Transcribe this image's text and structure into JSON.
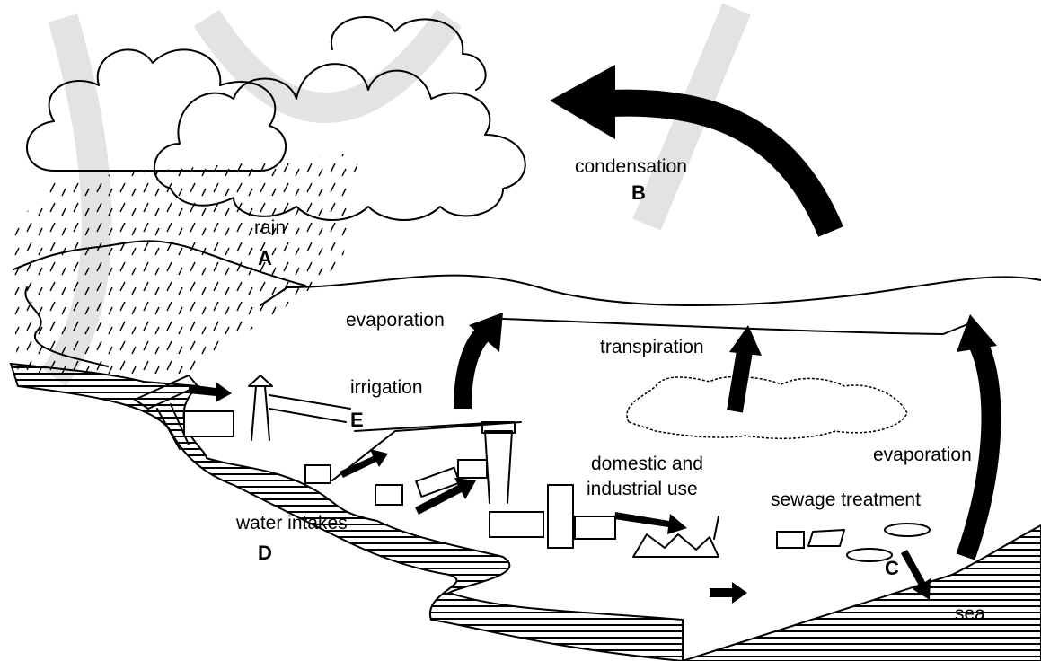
{
  "labels": [
    {
      "text": "rain",
      "letter": "A"
    },
    {
      "text": "condensation",
      "letter": "B"
    },
    {
      "text": "evaporation"
    },
    {
      "text": "transpiration"
    },
    {
      "text": "irrigation",
      "letter": "E"
    },
    {
      "text": "domestic and",
      "text2": "industrial use"
    },
    {
      "text": "sewage treatment",
      "letter": "C"
    },
    {
      "text": "evaporation"
    },
    {
      "text": "water intakes",
      "letter": "D"
    },
    {
      "text": "sea"
    }
  ]
}
